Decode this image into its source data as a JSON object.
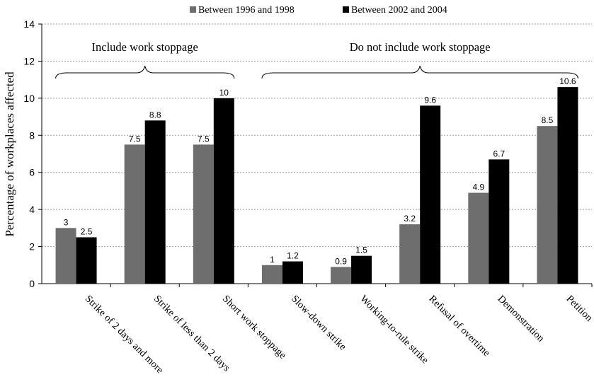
{
  "chart_data": {
    "type": "bar",
    "title": "",
    "xlabel": "",
    "ylabel": "Percentage of workplaces affected",
    "ylim": [
      0,
      14
    ],
    "yticks": [
      0,
      2,
      4,
      6,
      8,
      10,
      12,
      14
    ],
    "grid": true,
    "legend_position": "top",
    "categories": [
      "Strike of 2 days and more",
      "Strike of less than 2 days",
      "Short work stoppage",
      "Slow-down strike",
      "Working-to-rule strike",
      "Refusal of overtime",
      "Demonstration",
      "Petition"
    ],
    "series": [
      {
        "name": "Between 1996 and 1998",
        "color": "#6e6e6e",
        "values": [
          3,
          7.5,
          7.5,
          1,
          0.9,
          3.2,
          4.9,
          8.5
        ],
        "labels": [
          "3",
          "7.5",
          "7.5",
          "1",
          "0.9",
          "3.2",
          "4.9",
          "8.5"
        ]
      },
      {
        "name": "Between 2002 and 2004",
        "color": "#000000",
        "values": [
          2.5,
          8.8,
          10,
          1.2,
          1.5,
          9.6,
          6.7,
          10.6
        ],
        "labels": [
          "2.5",
          "8.8",
          "10",
          "1.2",
          "1.5",
          "9.6",
          "6.7",
          "10.6"
        ]
      }
    ],
    "annotations": [
      {
        "text": "Include work stoppage",
        "from_category": 0,
        "to_category": 2
      },
      {
        "text": "Do not include work stoppage",
        "from_category": 3,
        "to_category": 7
      }
    ]
  }
}
